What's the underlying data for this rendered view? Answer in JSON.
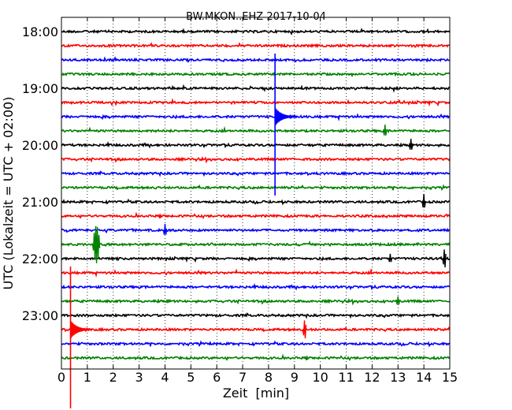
{
  "chart_data": {
    "type": "line",
    "title": "BW.MKON..EHZ 2017-10-04",
    "xlabel": "Zeit  [min]",
    "ylabel": "UTC (Lokalzeit = UTC + 02:00)",
    "xlim": [
      0,
      15
    ],
    "x_ticks": [
      "0",
      "1",
      "2",
      "3",
      "4",
      "5",
      "6",
      "7",
      "8",
      "9",
      "10",
      "11",
      "12",
      "13",
      "14",
      "15"
    ],
    "y_ticks": [
      "18:00",
      "19:00",
      "20:00",
      "21:00",
      "22:00",
      "23:00"
    ],
    "grid": "vertical dotted",
    "trace_colors": [
      "#000000",
      "#ff0000",
      "#0000ff",
      "#008000"
    ],
    "series": [
      {
        "start": "18:00",
        "color": "#000000",
        "events": []
      },
      {
        "start": "18:15",
        "color": "#ff0000",
        "events": []
      },
      {
        "start": "18:30",
        "color": "#0000ff",
        "events": []
      },
      {
        "start": "18:45",
        "color": "#008000",
        "events": []
      },
      {
        "start": "19:00",
        "color": "#000000",
        "events": []
      },
      {
        "start": "19:15",
        "color": "#ff0000",
        "events": []
      },
      {
        "start": "19:30",
        "color": "#0000ff",
        "events": [
          {
            "t": 8.25,
            "amp": 1.0
          }
        ]
      },
      {
        "start": "19:45",
        "color": "#008000",
        "events": [
          {
            "t": 12.5,
            "amp": 0.2
          }
        ]
      },
      {
        "start": "20:00",
        "color": "#000000",
        "events": [
          {
            "t": 13.5,
            "amp": 0.2
          }
        ]
      },
      {
        "start": "20:15",
        "color": "#ff0000",
        "events": []
      },
      {
        "start": "20:30",
        "color": "#0000ff",
        "events": []
      },
      {
        "start": "20:45",
        "color": "#008000",
        "events": []
      },
      {
        "start": "21:00",
        "color": "#000000",
        "events": [
          {
            "t": 14.0,
            "amp": 0.25
          }
        ]
      },
      {
        "start": "21:15",
        "color": "#ff0000",
        "events": []
      },
      {
        "start": "21:30",
        "color": "#0000ff",
        "events": [
          {
            "t": 4.0,
            "amp": 0.2
          }
        ]
      },
      {
        "start": "21:45",
        "color": "#008000",
        "events": [
          {
            "t": 1.35,
            "amp": 0.6
          }
        ]
      },
      {
        "start": "22:00",
        "color": "#000000",
        "events": [
          {
            "t": 12.7,
            "amp": 0.15
          },
          {
            "t": 14.8,
            "amp": 0.3
          }
        ]
      },
      {
        "start": "22:15",
        "color": "#ff0000",
        "events": []
      },
      {
        "start": "22:30",
        "color": "#0000ff",
        "events": []
      },
      {
        "start": "22:45",
        "color": "#008000",
        "events": [
          {
            "t": 13.0,
            "amp": 0.15
          }
        ]
      },
      {
        "start": "23:00",
        "color": "#000000",
        "events": []
      },
      {
        "start": "23:15",
        "color": "#ff0000",
        "events": [
          {
            "t": 0.35,
            "amp": 1.0
          },
          {
            "t": 9.4,
            "amp": 0.3
          }
        ]
      },
      {
        "start": "23:30",
        "color": "#0000ff",
        "events": []
      },
      {
        "start": "23:45",
        "color": "#008000",
        "events": []
      }
    ]
  }
}
